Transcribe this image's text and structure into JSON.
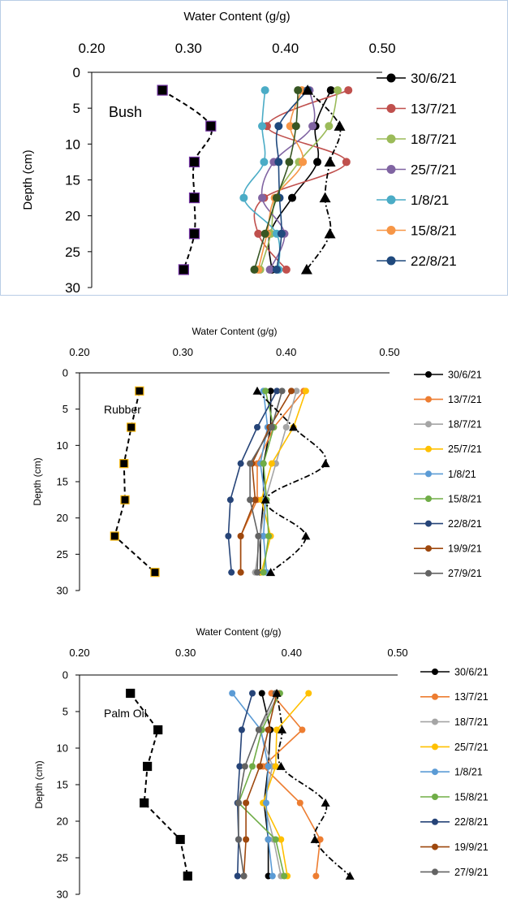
{
  "chart_data": [
    {
      "type": "line",
      "title": "",
      "xlabel": "Water Content (g/g)",
      "ylabel": "Depth (cm)",
      "xlim": [
        0.2,
        0.5
      ],
      "ylim": [
        0,
        30
      ],
      "xticks": [
        "0.20",
        "0.30",
        "0.40",
        "0.50"
      ],
      "yticks": [
        "0",
        "5",
        "10",
        "15",
        "20",
        "25",
        "30"
      ],
      "x_axis_position": "top",
      "y_inverted": true,
      "grid": false,
      "legend_position": "right",
      "annotation": "Bush",
      "depths": [
        2.5,
        7.5,
        12.5,
        17.5,
        22.5,
        27.5
      ],
      "series": [
        {
          "name": "30/6/21",
          "color": "#000000",
          "values": [
            0.447,
            0.431,
            0.433,
            0.407,
            0.384,
            0.386
          ]
        },
        {
          "name": "13/7/21",
          "color": "#c0504d",
          "values": [
            0.465,
            0.381,
            0.463,
            0.378,
            0.372,
            0.401
          ]
        },
        {
          "name": "18/7/21",
          "color": "#9bbb59",
          "values": [
            0.454,
            0.445,
            0.414,
            0.39,
            0.385,
            0.374
          ]
        },
        {
          "name": "25/7/21",
          "color": "#8064a2",
          "values": [
            0.425,
            0.428,
            0.388,
            0.376,
            0.399,
            0.384
          ]
        },
        {
          "name": "1/8/21",
          "color": "#4bacc6",
          "values": [
            0.379,
            0.376,
            0.378,
            0.357,
            0.391,
            0.393
          ]
        },
        {
          "name": "15/8/21",
          "color": "#f79646",
          "values": [
            0.417,
            0.405,
            0.418,
            0.389,
            0.381,
            0.372
          ]
        },
        {
          "name": "22/8/21",
          "color": "#1f497d",
          "values": [
            0.423,
            0.393,
            0.393,
            0.394,
            0.396,
            0.391
          ]
        },
        {
          "name": "",
          "color": "#375623",
          "values": [
            0.413,
            0.411,
            0.404,
            0.391,
            0.379,
            0.368
          ]
        }
      ],
      "dry_series": {
        "marker": "square",
        "color": "#000000",
        "values": [
          0.273,
          0.323,
          0.306,
          0.306,
          0.306,
          0.295
        ]
      },
      "triangle_series": {
        "marker": "triangle",
        "color": "#000000",
        "values": [
          0.423,
          0.456,
          0.446,
          0.441,
          0.446,
          0.422
        ]
      }
    },
    {
      "type": "line",
      "title": "",
      "xlabel": "Water Content (g/g)",
      "ylabel": "Depth (cm)",
      "xlim": [
        0.2,
        0.5
      ],
      "ylim": [
        0,
        30
      ],
      "xticks": [
        "0.20",
        "0.30",
        "0.40",
        "0.50"
      ],
      "yticks": [
        "0",
        "5",
        "10",
        "15",
        "20",
        "25",
        "30"
      ],
      "x_axis_position": "top",
      "y_inverted": true,
      "grid": false,
      "legend_position": "right",
      "annotation": "Rubber",
      "depths": [
        2.5,
        7.5,
        12.5,
        17.5,
        22.5,
        27.5
      ],
      "series": [
        {
          "name": "30/6/21",
          "color": "#000000",
          "values": [
            0.385,
            0.385,
            0.378,
            0.378,
            0.375,
            0.375
          ]
        },
        {
          "name": "13/7/21",
          "color": "#ed7d31",
          "values": [
            0.417,
            0.388,
            0.372,
            0.372,
            0.356,
            0.356
          ]
        },
        {
          "name": "18/7/21",
          "color": "#a5a5a5",
          "values": [
            0.41,
            0.4,
            0.39,
            0.38,
            0.375,
            0.37
          ]
        },
        {
          "name": "25/7/21",
          "color": "#ffc000",
          "values": [
            0.419,
            0.407,
            0.386,
            0.376,
            0.385,
            0.376
          ]
        },
        {
          "name": "1/8/21",
          "color": "#5b9bd5",
          "values": [
            0.378,
            0.382,
            0.375,
            0.38,
            0.378,
            0.381
          ]
        },
        {
          "name": "15/8/21",
          "color": "#70ad47",
          "values": [
            0.38,
            0.388,
            0.378,
            0.381,
            0.383,
            0.378
          ]
        },
        {
          "name": "22/8/21",
          "color": "#264478",
          "values": [
            0.391,
            0.372,
            0.356,
            0.346,
            0.344,
            0.347
          ]
        },
        {
          "name": "19/9/21",
          "color": "#9e480e",
          "values": [
            0.405,
            0.384,
            0.367,
            0.37,
            0.356,
            0.356
          ]
        },
        {
          "name": "27/9/21",
          "color": "#636363",
          "values": [
            0.396,
            0.386,
            0.365,
            0.365,
            0.373,
            0.372
          ]
        }
      ],
      "dry_series": {
        "marker": "square",
        "color": "#000000",
        "values": [
          0.258,
          0.25,
          0.243,
          0.244,
          0.234,
          0.273
        ]
      },
      "triangle_series": {
        "marker": "triangle",
        "color": "#000000",
        "values": [
          0.372,
          0.407,
          0.438,
          0.38,
          0.419,
          0.385
        ]
      }
    },
    {
      "type": "line",
      "title": "",
      "xlabel": "Water Content (g/g)",
      "ylabel": "Depth (cm)",
      "xlim": [
        0.2,
        0.5
      ],
      "ylim": [
        0,
        30
      ],
      "xticks": [
        "0.20",
        "0.30",
        "0.40",
        "0.50"
      ],
      "yticks": [
        "0",
        "5",
        "10",
        "15",
        "20",
        "25",
        "30"
      ],
      "x_axis_position": "top",
      "y_inverted": true,
      "grid": false,
      "legend_position": "right",
      "annotation": "Palm Oil",
      "depths": [
        2.5,
        7.5,
        12.5,
        17.5,
        22.5,
        27.5
      ],
      "series": [
        {
          "name": "30/6/21",
          "color": "#000000",
          "values": [
            0.372,
            0.38,
            0.378,
            0.374,
            0.378,
            0.378
          ]
        },
        {
          "name": "13/7/21",
          "color": "#ed7d31",
          "values": [
            0.381,
            0.41,
            0.373,
            0.408,
            0.427,
            0.423
          ]
        },
        {
          "name": "18/7/21",
          "color": "#a5a5a5",
          "values": [
            0.388,
            0.37,
            0.382,
            0.374,
            0.383,
            0.39
          ]
        },
        {
          "name": "25/7/21",
          "color": "#ffc000",
          "values": [
            0.416,
            0.386,
            0.385,
            0.373,
            0.39,
            0.396
          ]
        },
        {
          "name": "1/8/21",
          "color": "#5b9bd5",
          "values": [
            0.344,
            0.371,
            0.378,
            0.376,
            0.378,
            0.382
          ]
        },
        {
          "name": "15/8/21",
          "color": "#70ad47",
          "values": [
            0.389,
            0.372,
            0.363,
            0.35,
            0.385,
            0.393
          ]
        },
        {
          "name": "22/8/21",
          "color": "#264478",
          "values": [
            0.363,
            0.353,
            0.351,
            0.349,
            0.35,
            0.349
          ]
        },
        {
          "name": "19/9/21",
          "color": "#9e480e",
          "values": [
            0.386,
            0.378,
            0.37,
            0.357,
            0.357,
            0.355
          ]
        },
        {
          "name": "27/9/21",
          "color": "#636363",
          "values": [
            0.385,
            0.369,
            0.356,
            0.35,
            0.35,
            0.355
          ]
        }
      ],
      "dry_series": {
        "marker": "square",
        "color": "#000000",
        "values": [
          0.248,
          0.274,
          0.264,
          0.261,
          0.295,
          0.302
        ]
      },
      "triangle_series": {
        "marker": "triangle",
        "color": "#000000",
        "values": [
          0.386,
          0.391,
          0.39,
          0.432,
          0.422,
          0.455
        ]
      }
    }
  ]
}
